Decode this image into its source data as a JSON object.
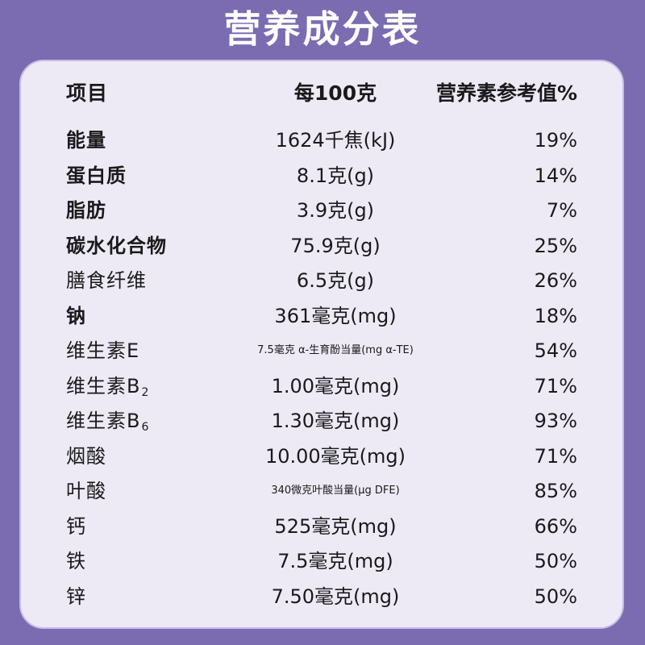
{
  "title": "营养成分表",
  "header": {
    "item": "项目",
    "per100": "每100克",
    "nrv": "营养素参考值%"
  },
  "rows": [
    {
      "name": "能量",
      "sub": "",
      "amount": "1624千焦(kJ)",
      "nrv": "19%",
      "bold": true,
      "small": false
    },
    {
      "name": "蛋白质",
      "sub": "",
      "amount": "8.1克(g)",
      "nrv": "14%",
      "bold": true,
      "small": false
    },
    {
      "name": "脂肪",
      "sub": "",
      "amount": "3.9克(g)",
      "nrv": "7%",
      "bold": true,
      "small": false
    },
    {
      "name": "碳水化合物",
      "sub": "",
      "amount": "75.9克(g)",
      "nrv": "25%",
      "bold": true,
      "small": false
    },
    {
      "name": "膳食纤维",
      "sub": "",
      "amount": "6.5克(g)",
      "nrv": "26%",
      "bold": false,
      "small": false
    },
    {
      "name": "钠",
      "sub": "",
      "amount": "361毫克(mg)",
      "nrv": "18%",
      "bold": true,
      "small": false
    },
    {
      "name": "维生素E",
      "sub": "",
      "amount": "7.5毫克 α-生育酚当量(mg α-TE)",
      "nrv": "54%",
      "bold": false,
      "small": true
    },
    {
      "name": "维生素B",
      "sub": "2",
      "amount": "1.00毫克(mg)",
      "nrv": "71%",
      "bold": false,
      "small": false
    },
    {
      "name": "维生素B",
      "sub": "6",
      "amount": "1.30毫克(mg)",
      "nrv": "93%",
      "bold": false,
      "small": false
    },
    {
      "name": "烟酸",
      "sub": "",
      "amount": "10.00毫克(mg)",
      "nrv": "71%",
      "bold": false,
      "small": false
    },
    {
      "name": "叶酸",
      "sub": "",
      "amount": "340微克叶酸当量(μg DFE)",
      "nrv": "85%",
      "bold": false,
      "small": true
    },
    {
      "name": "钙",
      "sub": "",
      "amount": "525毫克(mg)",
      "nrv": "66%",
      "bold": false,
      "small": false
    },
    {
      "name": "铁",
      "sub": "",
      "amount": "7.5毫克(mg)",
      "nrv": "50%",
      "bold": false,
      "small": false
    },
    {
      "name": "锌",
      "sub": "",
      "amount": "7.50毫克(mg)",
      "nrv": "50%",
      "bold": false,
      "small": false
    }
  ]
}
